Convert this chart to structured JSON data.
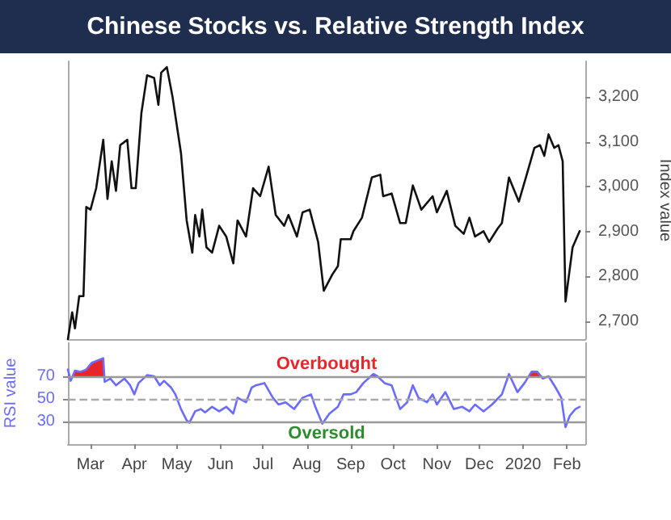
{
  "chart_data": [
    {
      "type": "line",
      "title": "Chinese Stocks vs. Relative Strength Index",
      "ylabel": "Index value",
      "tick_labels": "y",
      "xlim": [
        "2019-02-13",
        "2020-02-14"
      ],
      "ylim": [
        2660,
        3280
      ],
      "yticks": [
        {
          "value": 2700,
          "label": "2,700"
        },
        {
          "value": 2800,
          "label": "2,800"
        },
        {
          "value": 2900,
          "label": "2,900"
        },
        {
          "value": 3000,
          "label": "3,000"
        },
        {
          "value": 3100,
          "label": "3,100"
        },
        {
          "value": 3200,
          "label": "3,200"
        }
      ],
      "series": [
        {
          "color": "#111111",
          "x": [
            "2019-02-13",
            "2019-02-16",
            "2019-02-18",
            "2019-02-21",
            "2019-02-24",
            "2019-02-26",
            "2019-03-01",
            "2019-03-05",
            "2019-03-10",
            "2019-03-13",
            "2019-03-16",
            "2019-03-19",
            "2019-03-22",
            "2019-03-27",
            "2019-03-30",
            "2019-04-02",
            "2019-04-06",
            "2019-04-10",
            "2019-04-15",
            "2019-04-18",
            "2019-04-20",
            "2019-04-24",
            "2019-04-28",
            "2019-05-04",
            "2019-05-08",
            "2019-05-12",
            "2019-05-14",
            "2019-05-17",
            "2019-05-19",
            "2019-05-22",
            "2019-05-26",
            "2019-05-31",
            "2019-06-05",
            "2019-06-10",
            "2019-06-13",
            "2019-06-19",
            "2019-06-24",
            "2019-06-29",
            "2019-07-05",
            "2019-07-10",
            "2019-07-16",
            "2019-07-19",
            "2019-07-25",
            "2019-07-29",
            "2019-08-03",
            "2019-08-09",
            "2019-08-13",
            "2019-08-19",
            "2019-08-23",
            "2019-08-25",
            "2019-09-01",
            "2019-09-03",
            "2019-09-09",
            "2019-09-16",
            "2019-09-22",
            "2019-09-24",
            "2019-09-30",
            "2019-10-06",
            "2019-10-10",
            "2019-10-15",
            "2019-10-21",
            "2019-10-29",
            "2019-11-01",
            "2019-11-08",
            "2019-11-14",
            "2019-11-20",
            "2019-11-24",
            "2019-11-28",
            "2019-12-04",
            "2019-12-08",
            "2019-12-14",
            "2019-12-17",
            "2019-12-22",
            "2019-12-29",
            "2020-01-03",
            "2020-01-09",
            "2020-01-13",
            "2020-01-16",
            "2020-01-19",
            "2020-01-23",
            "2020-01-26",
            "2020-01-29",
            "2020-01-31",
            "2020-02-05",
            "2020-02-10"
          ],
          "values": [
            2660,
            2720,
            2684,
            2756,
            2756,
            2955,
            2949,
            2997,
            3105,
            2973,
            3057,
            2991,
            3093,
            3105,
            2997,
            2997,
            3165,
            3249,
            3243,
            3183,
            3255,
            3267,
            3201,
            3075,
            2925,
            2853,
            2937,
            2889,
            2949,
            2865,
            2853,
            2913,
            2889,
            2829,
            2925,
            2889,
            2997,
            2979,
            3045,
            2937,
            2913,
            2937,
            2889,
            2943,
            2949,
            2877,
            2768,
            2804,
            2823,
            2883,
            2883,
            2901,
            2931,
            3021,
            3027,
            2979,
            2985,
            2919,
            2919,
            3003,
            2949,
            2979,
            2943,
            2991,
            2913,
            2895,
            2931,
            2889,
            2901,
            2877,
            2907,
            2919,
            3021,
            2967,
            3021,
            3087,
            3093,
            3069,
            3117,
            3087,
            3093,
            3057,
            2744,
            2865,
            2901
          ]
        }
      ]
    },
    {
      "type": "line",
      "ylabel": "RSI value",
      "xlim": [
        "2019-02-13",
        "2020-02-14"
      ],
      "xticks": [
        {
          "value": "2019-03-01",
          "label": "Mar"
        },
        {
          "value": "2019-04-01",
          "label": "Apr"
        },
        {
          "value": "2019-05-01",
          "label": "May"
        },
        {
          "value": "2019-06-01",
          "label": "Jun"
        },
        {
          "value": "2019-07-01",
          "label": "Jul"
        },
        {
          "value": "2019-08-01",
          "label": "Aug"
        },
        {
          "value": "2019-09-01",
          "label": "Sep"
        },
        {
          "value": "2019-10-01",
          "label": "Oct"
        },
        {
          "value": "2019-11-01",
          "label": "Nov"
        },
        {
          "value": "2019-12-01",
          "label": "Dec"
        },
        {
          "value": "2020-01-01",
          "label": "2020"
        },
        {
          "value": "2020-02-01",
          "label": "Feb"
        }
      ],
      "ylim": [
        10,
        100
      ],
      "yticks": [
        30,
        50,
        70
      ],
      "ref_lines": [
        {
          "axis": "y",
          "value": 70,
          "color": "#999999",
          "label": "Overbought"
        },
        {
          "axis": "y",
          "value": 50,
          "color": "#aaaaaa",
          "line_style": "dashed"
        },
        {
          "axis": "y",
          "value": 30,
          "color": "#999999",
          "label": "Oversold"
        }
      ],
      "series": [
        {
          "color": "#6b6bff",
          "x": [
            "2019-02-13",
            "2019-02-15",
            "2019-02-18",
            "2019-02-22",
            "2019-02-26",
            "2019-03-02",
            "2019-03-06",
            "2019-03-10",
            "2019-03-11",
            "2019-03-15",
            "2019-03-19",
            "2019-03-25",
            "2019-03-29",
            "2019-04-01",
            "2019-04-04",
            "2019-04-10",
            "2019-04-15",
            "2019-04-19",
            "2019-04-22",
            "2019-04-27",
            "2019-04-30",
            "2019-05-04",
            "2019-05-08",
            "2019-05-10",
            "2019-05-14",
            "2019-05-18",
            "2019-05-21",
            "2019-05-26",
            "2019-05-31",
            "2019-06-05",
            "2019-06-10",
            "2019-06-13",
            "2019-06-19",
            "2019-06-23",
            "2019-06-26",
            "2019-07-02",
            "2019-07-08",
            "2019-07-12",
            "2019-07-17",
            "2019-07-23",
            "2019-07-29",
            "2019-08-04",
            "2019-08-07",
            "2019-08-12",
            "2019-08-17",
            "2019-08-23",
            "2019-08-27",
            "2019-09-01",
            "2019-09-05",
            "2019-09-10",
            "2019-09-17",
            "2019-09-20",
            "2019-09-25",
            "2019-09-30",
            "2019-10-06",
            "2019-10-11",
            "2019-10-15",
            "2019-10-19",
            "2019-10-25",
            "2019-10-29",
            "2019-11-01",
            "2019-11-07",
            "2019-11-13",
            "2019-11-19",
            "2019-11-24",
            "2019-11-28",
            "2019-12-04",
            "2019-12-10",
            "2019-12-17",
            "2019-12-22",
            "2019-12-28",
            "2020-01-02",
            "2020-01-07",
            "2020-01-11",
            "2020-01-15",
            "2020-01-19",
            "2020-01-24",
            "2020-01-28",
            "2020-01-31",
            "2020-02-03",
            "2020-02-07",
            "2020-02-10"
          ],
          "values": [
            76,
            66,
            75,
            74,
            76,
            82,
            84,
            86,
            65,
            68,
            62,
            68,
            62,
            54,
            64,
            71,
            70,
            62,
            66,
            60,
            54,
            41,
            31,
            29,
            39,
            41,
            38,
            43,
            39,
            43,
            37,
            51,
            47,
            60,
            62,
            64,
            51,
            45,
            47,
            41,
            51,
            54,
            43,
            28,
            37,
            43,
            54,
            54,
            56,
            64,
            72,
            70,
            64,
            62,
            41,
            47,
            62,
            51,
            47,
            54,
            45,
            56,
            41,
            43,
            39,
            45,
            39,
            45,
            54,
            72,
            56,
            64,
            74,
            74,
            68,
            70,
            60,
            51,
            25,
            35,
            41,
            43
          ]
        }
      ]
    }
  ]
}
